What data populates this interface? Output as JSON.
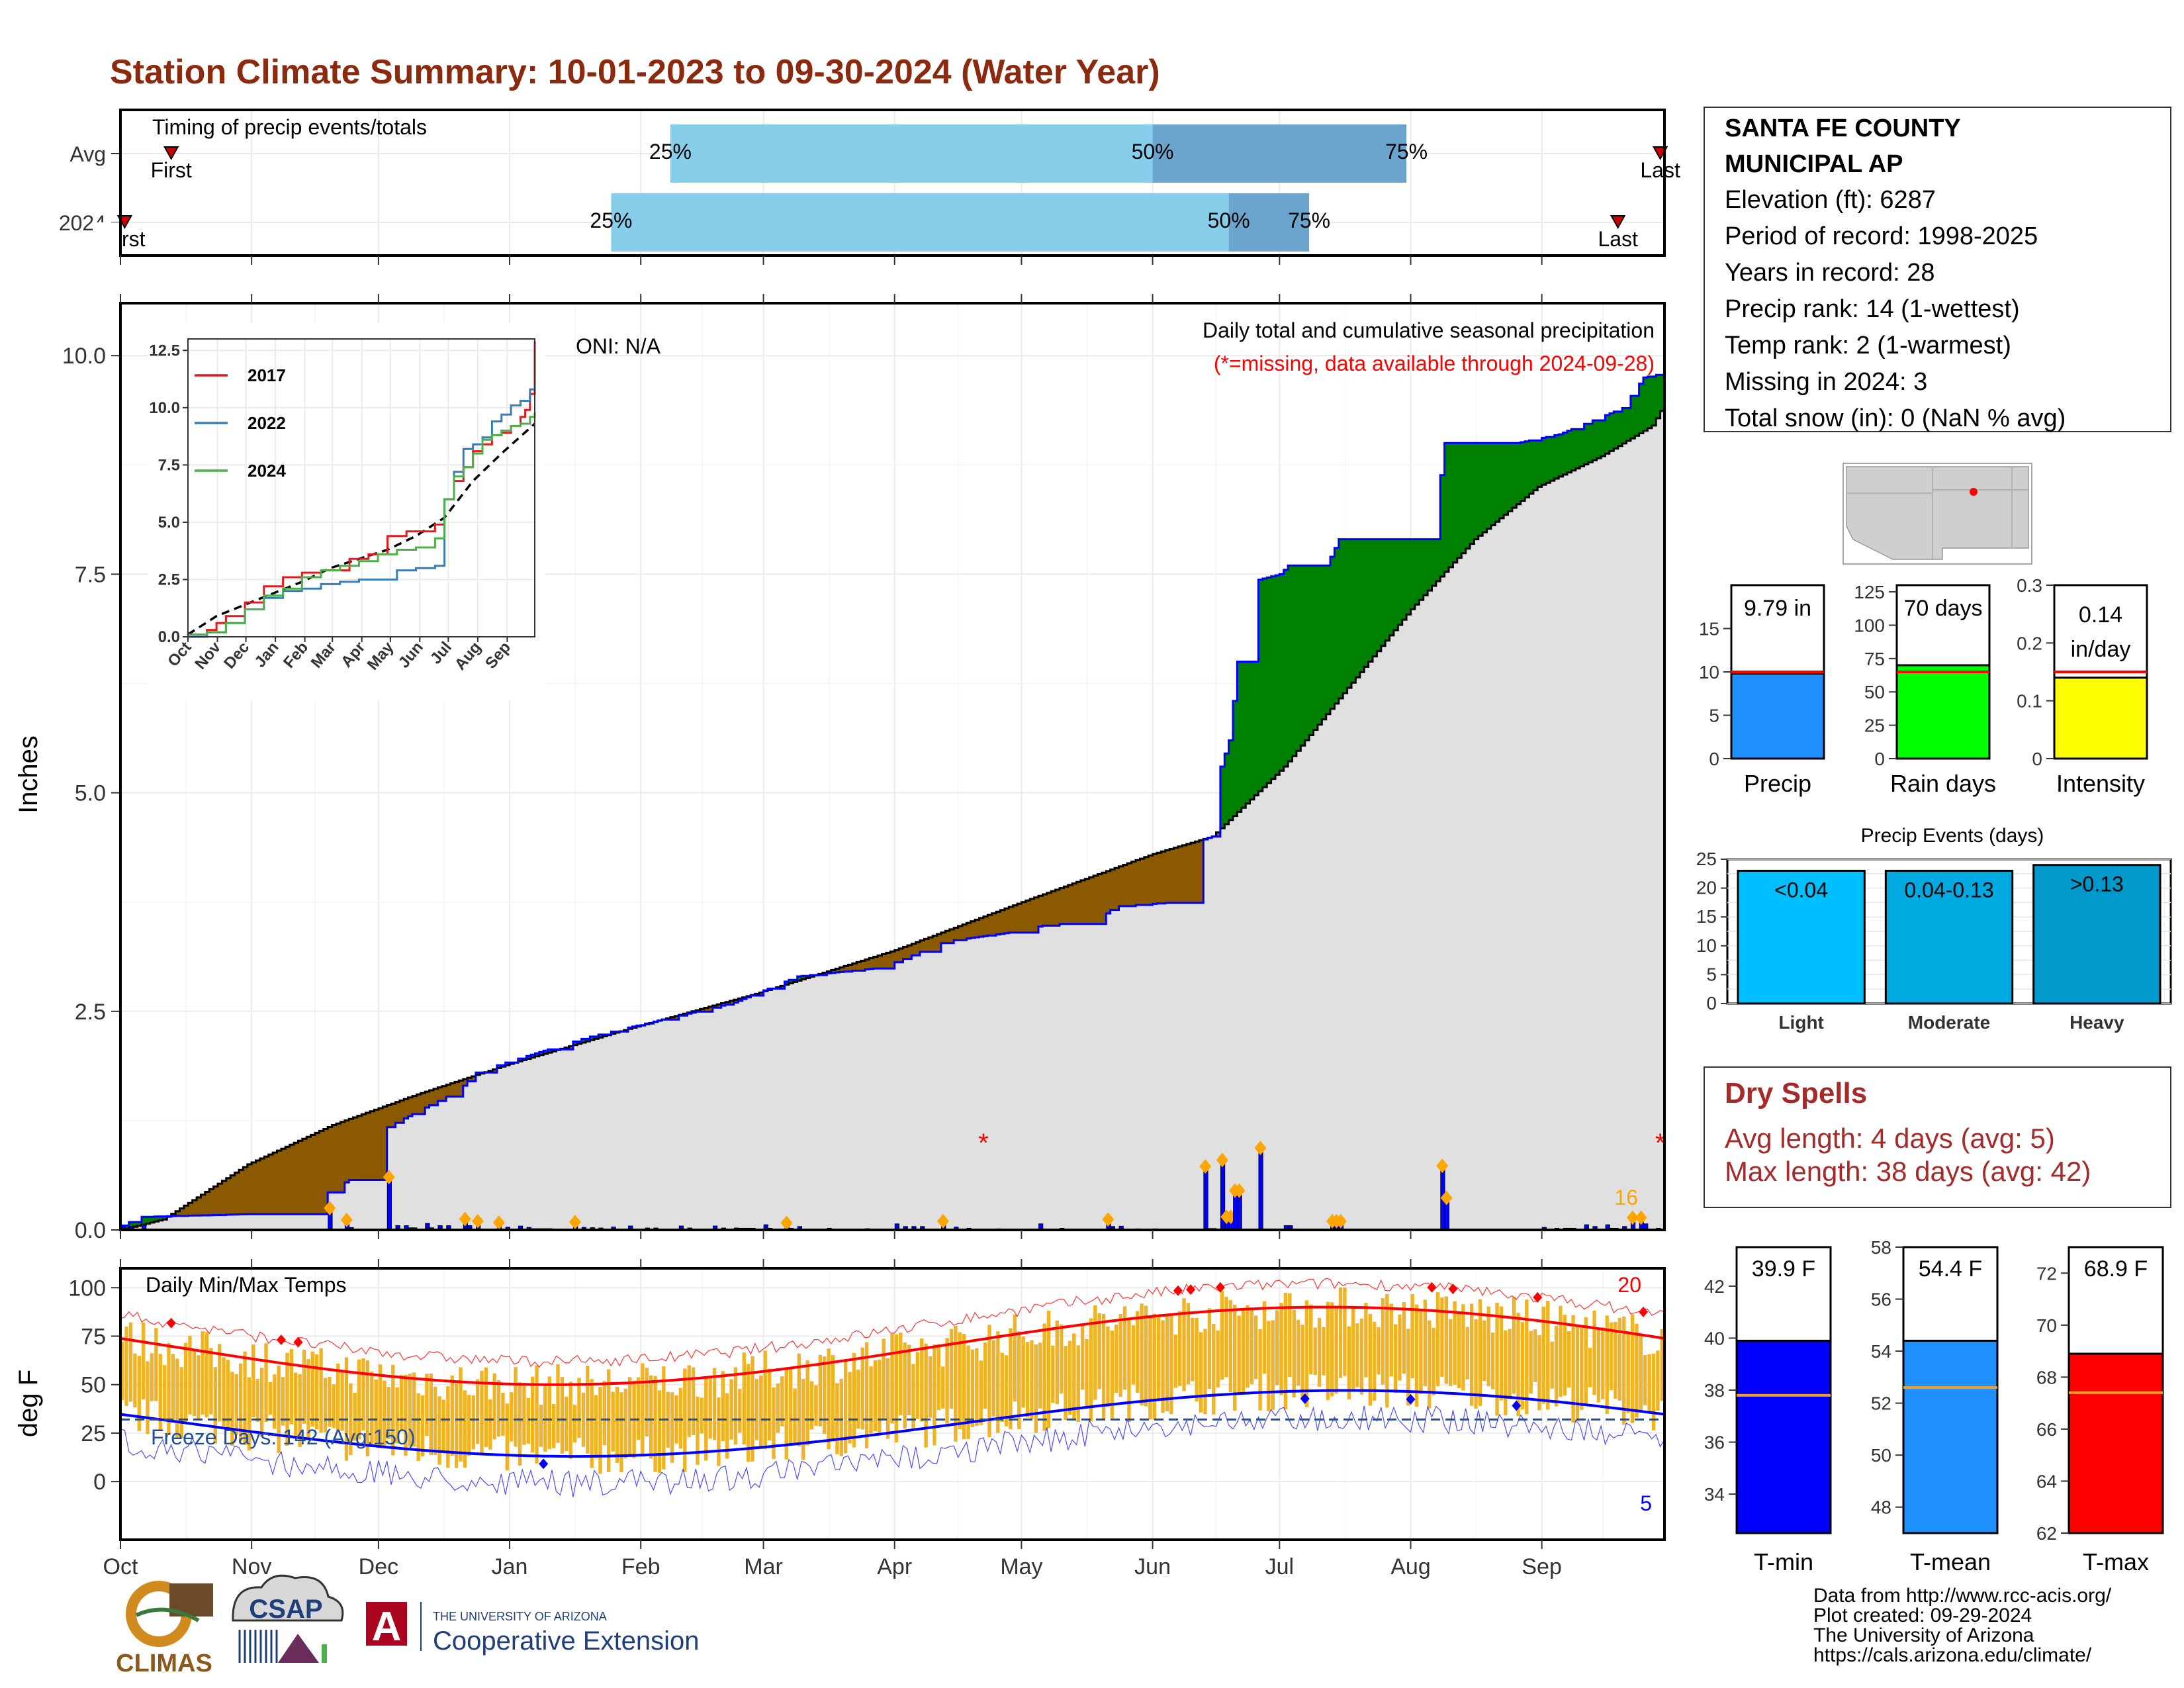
{
  "title": "Station Climate Summary: 10-01-2023 to 09-30-2024 (Water Year)",
  "colors": {
    "title": "#8B2A0E",
    "surplus": "#008000",
    "deficit": "#8B5A00",
    "cumulative_avg_fill": "#e0e0e0",
    "daily_bar": "#0000FF",
    "precip": "#1E90FF",
    "raindays": "#00FF00",
    "intensity": "#FFFF00",
    "light": "#00BFFF",
    "moderate": "#00A9E0",
    "heavy": "#0099CC",
    "tmin": "#0000FF",
    "tmean": "#1E90FF",
    "tmax": "#FF0000",
    "temp_range": "#F0B323",
    "dry_spell": "#A52A2A"
  },
  "months": [
    "Oct",
    "Nov",
    "Dec",
    "Jan",
    "Feb",
    "Mar",
    "Apr",
    "May",
    "Jun",
    "Jul",
    "Aug",
    "Sep"
  ],
  "timing": {
    "title": "Timing of precip events/totals",
    "rows": [
      {
        "label": "Avg",
        "first_label": "First",
        "last_label": "Last",
        "first_day": 12,
        "last_day": 364,
        "p25_label": "25%",
        "p50_label": "50%",
        "p75_label": "75%",
        "p25_day": 130,
        "p50_day": 244,
        "p75_day": 304
      },
      {
        "label": "2024",
        "first_label": "First",
        "last_label": "Last",
        "first_day": 1,
        "last_day": 354,
        "p25_label": "25%",
        "p50_label": "50%",
        "p75_label": "75%",
        "p25_day": 116,
        "p50_day": 262,
        "p75_day": 281
      }
    ]
  },
  "station": {
    "name_line1": "SANTA FE COUNTY",
    "name_line2": "MUNICIPAL AP",
    "lines": [
      "Elevation (ft): 6287",
      "Period of record: 1998-2025",
      "Years in record: 28",
      "Precip rank: 14 (1-wettest)",
      "Temp rank: 2 (1-warmest)",
      "Missing in 2024: 3",
      "Total snow (in): 0 (NaN % avg)"
    ]
  },
  "precip_panel": {
    "ylabel": "Inches",
    "oni": "ONI: N/A",
    "note1": "Daily total and cumulative seasonal precipitation",
    "note2": "(*=missing, data available through 2024-09-28)",
    "max_daily_label": "16",
    "ylim": [
      0,
      10.6
    ],
    "yticks": [
      0,
      2.5,
      5,
      7.5,
      10
    ],
    "ytick_labels": [
      "0.0",
      "2.5",
      "5.0",
      "7.5",
      "10.0"
    ],
    "missing_days": [
      204,
      364
    ]
  },
  "inset": {
    "ylim": [
      0,
      13
    ],
    "yticks": [
      0,
      2.5,
      5,
      7.5,
      10,
      12.5
    ],
    "ytick_labels": [
      "0.0",
      "2.5",
      "5.0",
      "7.5",
      "10.0",
      "12.5"
    ],
    "series": [
      {
        "name": "2017",
        "color": "#E41A1C",
        "x": [
          0,
          20,
          30,
          40,
          60,
          80,
          100,
          120,
          140,
          170,
          190,
          210,
          230,
          250,
          260,
          270,
          280,
          290,
          300,
          310,
          320,
          330,
          340,
          350,
          355,
          360,
          365
        ],
        "y": [
          0,
          0.3,
          0.6,
          0.9,
          1.5,
          2.2,
          2.6,
          2.8,
          2.9,
          3.4,
          3.6,
          4.4,
          4.6,
          4.6,
          4.9,
          6.0,
          6.8,
          7.4,
          8.1,
          8.4,
          8.8,
          8.9,
          9.2,
          9.6,
          9.9,
          10.6,
          12.9
        ]
      },
      {
        "name": "2022",
        "color": "#377EB8",
        "x": [
          0,
          20,
          40,
          60,
          80,
          100,
          120,
          140,
          160,
          180,
          200,
          220,
          240,
          260,
          270,
          280,
          290,
          300,
          310,
          320,
          330,
          340,
          350,
          360,
          365
        ],
        "y": [
          0,
          0.2,
          0.6,
          1.2,
          1.7,
          2.0,
          2.1,
          2.3,
          2.4,
          2.5,
          2.5,
          2.9,
          3.0,
          3.1,
          6.0,
          7.2,
          8.2,
          8.4,
          8.7,
          9.4,
          9.7,
          10.1,
          10.3,
          10.8,
          11.0
        ]
      },
      {
        "name": "2024",
        "color": "#4DAF4A",
        "x": [
          0,
          20,
          40,
          60,
          80,
          100,
          120,
          140,
          160,
          180,
          200,
          220,
          240,
          260,
          270,
          280,
          290,
          300,
          310,
          320,
          330,
          340,
          350,
          360,
          365
        ],
        "y": [
          0.1,
          0.2,
          0.6,
          1.2,
          1.8,
          2.1,
          2.6,
          2.9,
          3.1,
          3.3,
          3.6,
          3.8,
          3.9,
          4.3,
          6.0,
          7.0,
          7.4,
          8.0,
          8.6,
          8.8,
          9.0,
          9.2,
          9.3,
          9.6,
          9.8
        ]
      }
    ],
    "avg_x": [
      0,
      30,
      60,
      90,
      120,
      150,
      180,
      210,
      240,
      270,
      300,
      330,
      365
    ],
    "avg_y": [
      0.1,
      0.9,
      1.4,
      1.9,
      2.4,
      3.0,
      3.4,
      3.8,
      4.4,
      5.2,
      6.8,
      8.0,
      9.3
    ]
  },
  "temp_panel": {
    "title": "Daily Min/Max Temps",
    "ylabel": "deg F",
    "freeze": "Freeze Days: 142 (Avg:150)",
    "max_records_label": "20",
    "min_records_label": "5",
    "ylim": [
      -30,
      110
    ],
    "yticks": [
      0,
      25,
      50,
      75,
      100
    ],
    "ytick_labels": [
      "0",
      "25",
      "50",
      "75",
      "100"
    ],
    "freeze_line": 32
  },
  "bars_top": [
    {
      "label": "Precip",
      "value_label": "9.79 in",
      "value": 9.79,
      "avg": 10.0,
      "ylim": [
        0,
        20
      ],
      "yticks": [
        0,
        5,
        10,
        15
      ],
      "color": "#1E90FF"
    },
    {
      "label": "Rain days",
      "value_label": "70 days",
      "value": 70,
      "avg": 65,
      "ylim": [
        0,
        130
      ],
      "yticks": [
        0,
        25,
        50,
        75,
        100,
        125
      ],
      "color": "#00FF00"
    },
    {
      "label": "Intensity",
      "value_label": "0.14 in/day",
      "value": 0.14,
      "avg": 0.15,
      "ylim": [
        0,
        0.3
      ],
      "yticks": [
        0.0,
        0.1,
        0.2,
        0.3
      ],
      "color": "#FFFF00"
    }
  ],
  "events": {
    "title": "Precip Events (days)",
    "ylim": [
      0,
      25
    ],
    "yticks": [
      0,
      5,
      10,
      15,
      20,
      25
    ],
    "bars": [
      {
        "label": "Light",
        "value_label": "<0.04",
        "value": 23,
        "color": "#00BFFF"
      },
      {
        "label": "Moderate",
        "value_label": "0.04-0.13",
        "value": 23,
        "color": "#00A9E0"
      },
      {
        "label": "Heavy",
        "value_label": ">0.13",
        "value": 24,
        "color": "#0099CC"
      }
    ]
  },
  "dry_spells": {
    "title": "Dry Spells",
    "line1": "Avg length: 4 days (avg: 5)",
    "line2": "Max length: 38 days (avg: 42)"
  },
  "temp_bars": [
    {
      "label": "T-min",
      "value_label": "39.9 F",
      "value": 39.9,
      "avg": 37.8,
      "ylim": [
        32.5,
        43.5
      ],
      "yticks": [
        34,
        36,
        38,
        40,
        42
      ],
      "color": "#0000FF"
    },
    {
      "label": "T-mean",
      "value_label": "54.4 F",
      "value": 54.4,
      "avg": 52.6,
      "ylim": [
        47,
        58
      ],
      "yticks": [
        48,
        50,
        52,
        54,
        56,
        58
      ],
      "color": "#1E90FF"
    },
    {
      "label": "T-max",
      "value_label": "68.9 F",
      "value": 68.9,
      "avg": 67.4,
      "ylim": [
        62,
        73
      ],
      "yticks": [
        62,
        64,
        66,
        68,
        70,
        72
      ],
      "color": "#FF0000"
    }
  ],
  "footer": {
    "lines": [
      "Data from http://www.rcc-acis.org/",
      "Plot created: 09-29-2024",
      "The University of Arizona",
      "https://cals.arizona.edu/climate/"
    ],
    "climas": "CLIMAS",
    "csap": "CSAP",
    "ua_small": "THE UNIVERSITY OF ARIZONA",
    "ua_big": "Cooperative Extension",
    "ua_letter": "A"
  }
}
